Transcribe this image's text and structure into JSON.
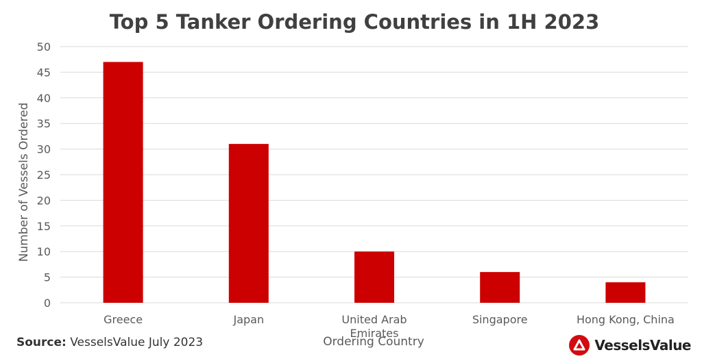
{
  "colors": {
    "bar": "#cc0000",
    "grid": "#d9d9d9",
    "text": "#595959",
    "brand_red": "#d20a11"
  },
  "footer": {
    "source_label": "Source:",
    "source_text": "VesselsValue July 2023"
  },
  "brand": {
    "name": "VesselsValue",
    "icon": "vesselsvalue-logo-icon"
  },
  "chart_data": {
    "type": "bar",
    "title": "Top 5 Tanker Ordering Countries in 1H 2023",
    "xlabel": "Ordering Country",
    "ylabel": "Number of Vessels Ordered",
    "categories": [
      [
        "Greece"
      ],
      [
        "Japan"
      ],
      [
        "United Arab",
        "Emirates"
      ],
      [
        "Singapore"
      ],
      [
        "Hong Kong, China"
      ]
    ],
    "values": [
      47,
      31,
      10,
      6,
      4
    ],
    "ylim": [
      0,
      50
    ],
    "yticks": [
      0,
      5,
      10,
      15,
      20,
      25,
      30,
      35,
      40,
      45,
      50
    ],
    "grid": true,
    "legend": "none"
  }
}
